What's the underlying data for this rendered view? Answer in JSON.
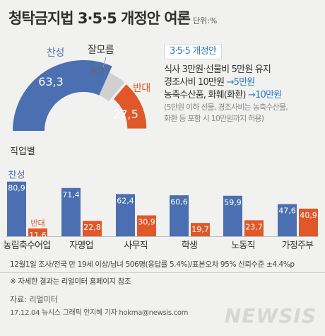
{
  "header": {
    "title": "청탁금지법 3·5·5 개정안 여론",
    "unit": "단위:%"
  },
  "info": {
    "heading": "3·5·5 개정안",
    "line1": "식사 3만원·선물비 5만원 유지",
    "line2_a": "경조사비 10만원 ",
    "line2_b": "→5만원",
    "line3_a": "농축수산품, 화훼(화환) ",
    "line3_b": "→10만원",
    "note1": "(5만원 이하 선물, 경조사비는 농축수산물,",
    "note2": "화환 등 포함 시 10만원까지 허용)"
  },
  "colors": {
    "support": "#4b6fb0",
    "oppose": "#e0582a",
    "unsure": "#d0d0d0",
    "accent": "#2b78c6"
  },
  "section_label": "직업별",
  "chart_data": [
    {
      "type": "pie",
      "variant": "half-donut",
      "slices": [
        {
          "label": "찬성",
          "value": 63.3
        },
        {
          "label": "잘모름",
          "value": 9.2
        },
        {
          "label": "반대",
          "value": 27.5
        }
      ]
    },
    {
      "type": "bar",
      "categories": [
        "농림축수어업",
        "자영업",
        "사무직",
        "학생",
        "노동직",
        "가정주부"
      ],
      "series": [
        {
          "name": "찬성",
          "values": [
            80.9,
            71.4,
            62.4,
            60.6,
            59.9,
            47.6
          ]
        },
        {
          "name": "반대",
          "values": [
            11.6,
            22.8,
            30.9,
            19.7,
            23.7,
            40.9
          ]
        }
      ],
      "ylim": [
        0,
        90
      ],
      "grid": false,
      "legend": "inline-first-group"
    }
  ],
  "footnote": {
    "survey": "12월1일 조사/전국 만 19세 이상/남녀 506명(응답률 5.4%)/표본오차 95% 신뢰수준 ±4.4%p",
    "detail": "※ 자세한 결과는 리얼미터 홈페이지 참조"
  },
  "source": "자료: 리얼미터",
  "credit": "17.12.04 뉴시스 그래픽 안지혜 기자 hokma@newsis.com",
  "logo": "NEWSIS"
}
